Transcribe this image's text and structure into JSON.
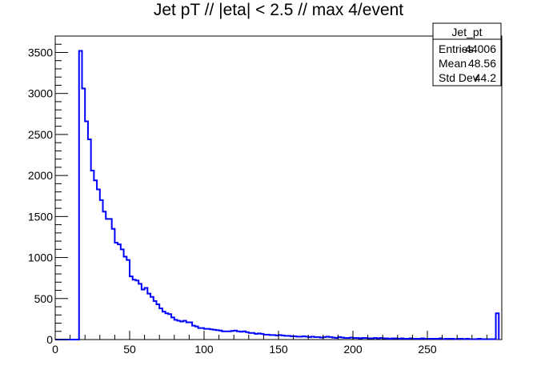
{
  "chart_data": {
    "type": "histogram",
    "title": "Jet pT // |eta| < 2.5 // max 4/event",
    "xlabel": "",
    "ylabel": "",
    "xlim": [
      0,
      300
    ],
    "ylim": [
      0,
      3700
    ],
    "bin_width": 2,
    "x_ticks": [
      0,
      50,
      100,
      150,
      200,
      250
    ],
    "y_ticks": [
      0,
      500,
      1000,
      1500,
      2000,
      2500,
      3000,
      3500
    ],
    "grid": false,
    "line_color": "#0000ff",
    "values": [
      0,
      0,
      0,
      0,
      0,
      0,
      0,
      0,
      3520,
      3060,
      2660,
      2440,
      2060,
      1940,
      1830,
      1700,
      1560,
      1470,
      1470,
      1350,
      1180,
      1160,
      1100,
      1010,
      970,
      770,
      730,
      720,
      680,
      610,
      630,
      560,
      520,
      470,
      430,
      380,
      340,
      320,
      310,
      270,
      240,
      230,
      220,
      230,
      210,
      210,
      170,
      160,
      140,
      140,
      130,
      130,
      125,
      120,
      115,
      110,
      100,
      100,
      100,
      105,
      110,
      100,
      95,
      100,
      90,
      80,
      80,
      70,
      75,
      70,
      60,
      60,
      55,
      55,
      50,
      55,
      50,
      45,
      45,
      40,
      40,
      35,
      35,
      40,
      35,
      30,
      35,
      30,
      30,
      25,
      30,
      35,
      30,
      25,
      20,
      30,
      25,
      20,
      20,
      25,
      20,
      20,
      15,
      20,
      20,
      15,
      15,
      20,
      15,
      20,
      15,
      15,
      10,
      15,
      15,
      10,
      15,
      10,
      10,
      15,
      10,
      10,
      10,
      15,
      10,
      10,
      10,
      10,
      10,
      15,
      5,
      10,
      10,
      10,
      5,
      10,
      10,
      5,
      10,
      5,
      5,
      5,
      10,
      5,
      5,
      5,
      5,
      5,
      320
    ],
    "stats": {
      "name": "Jet_pt",
      "rows": [
        {
          "label": "Entries",
          "value": "44006"
        },
        {
          "label": "Mean",
          "value": "48.56"
        },
        {
          "label": "Std Dev",
          "value": "44.2"
        }
      ]
    }
  }
}
